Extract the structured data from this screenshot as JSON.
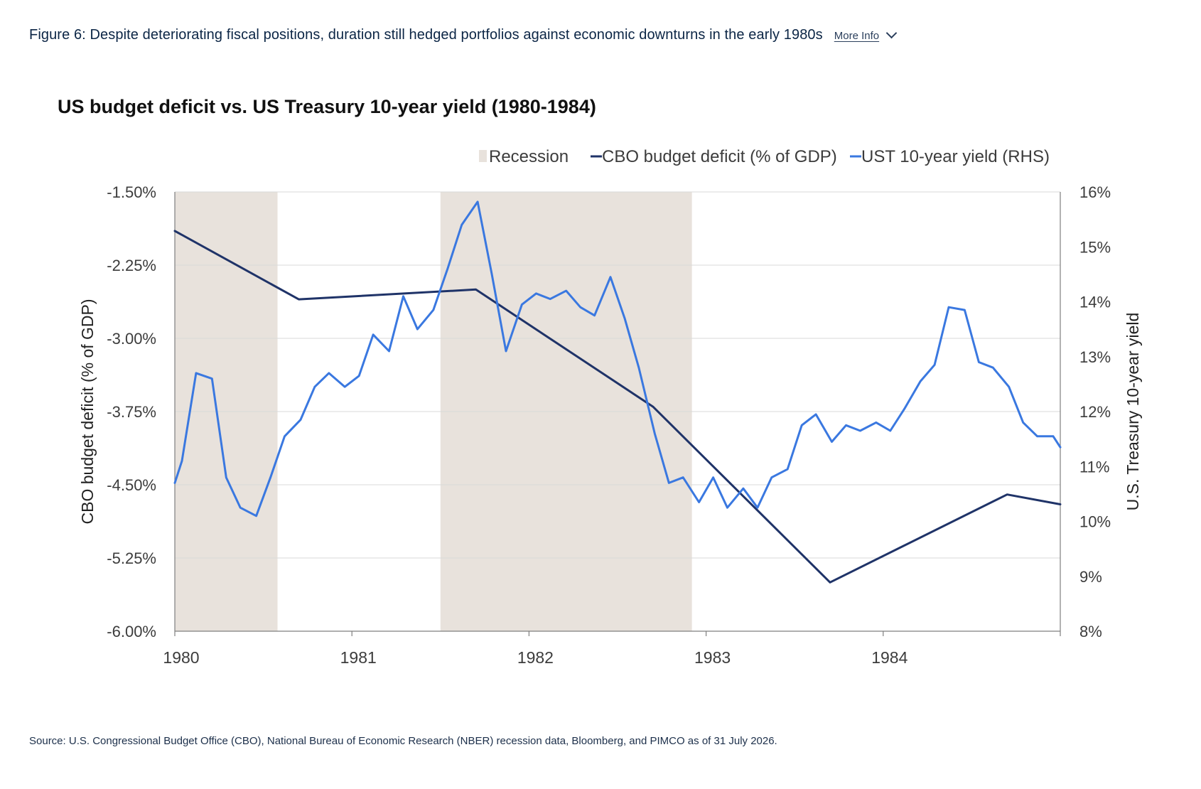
{
  "figure": {
    "title": "Figure 6: Despite deteriorating fiscal positions, duration still hedged portfolios against economic downturns in the early 1980s",
    "more_info_label": "More Info"
  },
  "source": "Source: U.S. Congressional Budget Office (CBO), National Bureau of Economic Research (NBER) recession data, Bloomberg, and PIMCO as of 31 July 2026.",
  "colors": {
    "deficit": "#1f3368",
    "yield": "#3a78e0",
    "recession": "#e8e2dc",
    "grid": "#d9d9d9",
    "axis": "#7f7f7f",
    "text": "#3c3c3c"
  },
  "chart_data": {
    "type": "line",
    "title": "US budget deficit vs. US Treasury 10-year yield (1980-1984)",
    "legend_position": "top-right",
    "grid": true,
    "x": {
      "range": [
        1980.0,
        1985.0
      ],
      "ticks": [
        1980,
        1981,
        1982,
        1983,
        1984
      ],
      "tick_labels": [
        "1980",
        "1981",
        "1982",
        "1983",
        "1984"
      ]
    },
    "y_left": {
      "label": "CBO budget deficit (% of GDP)",
      "range": [
        -6.0,
        -1.5
      ],
      "ticks": [
        -6.0,
        -5.25,
        -4.5,
        -3.75,
        -3.0,
        -2.25,
        -1.5
      ],
      "tick_labels": [
        "-6.00%",
        "-5.25%",
        "-4.50%",
        "-3.75%",
        "-3.00%",
        "-2.25%",
        "-1.50%"
      ]
    },
    "y_right": {
      "label": "U.S. Treasury 10-year yield",
      "range": [
        8,
        16
      ],
      "ticks": [
        8,
        9,
        10,
        11,
        12,
        13,
        14,
        15,
        16
      ],
      "tick_labels": [
        "8%",
        "9%",
        "10%",
        "11%",
        "12%",
        "13%",
        "14%",
        "15%",
        "16%"
      ]
    },
    "recessions": [
      {
        "name": "Recession",
        "start": 1980.0,
        "end": 1980.58
      },
      {
        "name": "Recession",
        "start": 1981.5,
        "end": 1982.92
      }
    ],
    "series": [
      {
        "name": "CBO budget deficit (% of GDP)",
        "axis": "left",
        "x": [
          1980.0,
          1980.7,
          1981.7,
          1982.7,
          1983.7,
          1984.7,
          1985.0
        ],
        "values": [
          -1.9,
          -2.6,
          -2.5,
          -3.7,
          -5.5,
          -4.6,
          -4.7
        ]
      },
      {
        "name": "UST 10-year yield (RHS)",
        "axis": "right",
        "x": [
          1980.0,
          1980.04,
          1980.12,
          1980.21,
          1980.29,
          1980.37,
          1980.46,
          1980.54,
          1980.62,
          1980.71,
          1980.79,
          1980.87,
          1980.96,
          1981.04,
          1981.12,
          1981.21,
          1981.29,
          1981.37,
          1981.46,
          1981.54,
          1981.62,
          1981.71,
          1981.79,
          1981.87,
          1981.96,
          1982.04,
          1982.12,
          1982.21,
          1982.29,
          1982.37,
          1982.46,
          1982.54,
          1982.62,
          1982.71,
          1982.79,
          1982.87,
          1982.96,
          1983.04,
          1983.12,
          1983.21,
          1983.29,
          1983.37,
          1983.46,
          1983.54,
          1983.62,
          1983.71,
          1983.79,
          1983.87,
          1983.96,
          1984.04,
          1984.12,
          1984.21,
          1984.29,
          1984.37,
          1984.46,
          1984.54,
          1984.62,
          1984.71,
          1984.79,
          1984.87,
          1984.96,
          1985.0
        ],
        "values": [
          10.7,
          11.1,
          12.7,
          12.6,
          10.8,
          10.25,
          10.1,
          10.8,
          11.55,
          11.85,
          12.45,
          12.7,
          12.45,
          12.65,
          13.4,
          13.1,
          14.1,
          13.5,
          13.85,
          14.6,
          15.4,
          15.82,
          14.5,
          13.1,
          13.95,
          14.15,
          14.05,
          14.2,
          13.9,
          13.75,
          14.45,
          13.7,
          12.8,
          11.6,
          10.7,
          10.8,
          10.35,
          10.8,
          10.25,
          10.6,
          10.25,
          10.8,
          10.95,
          11.75,
          11.95,
          11.45,
          11.75,
          11.65,
          11.8,
          11.65,
          12.05,
          12.55,
          12.85,
          13.9,
          13.85,
          12.9,
          12.8,
          12.45,
          11.8,
          11.55,
          11.55,
          11.35
        ]
      }
    ]
  }
}
